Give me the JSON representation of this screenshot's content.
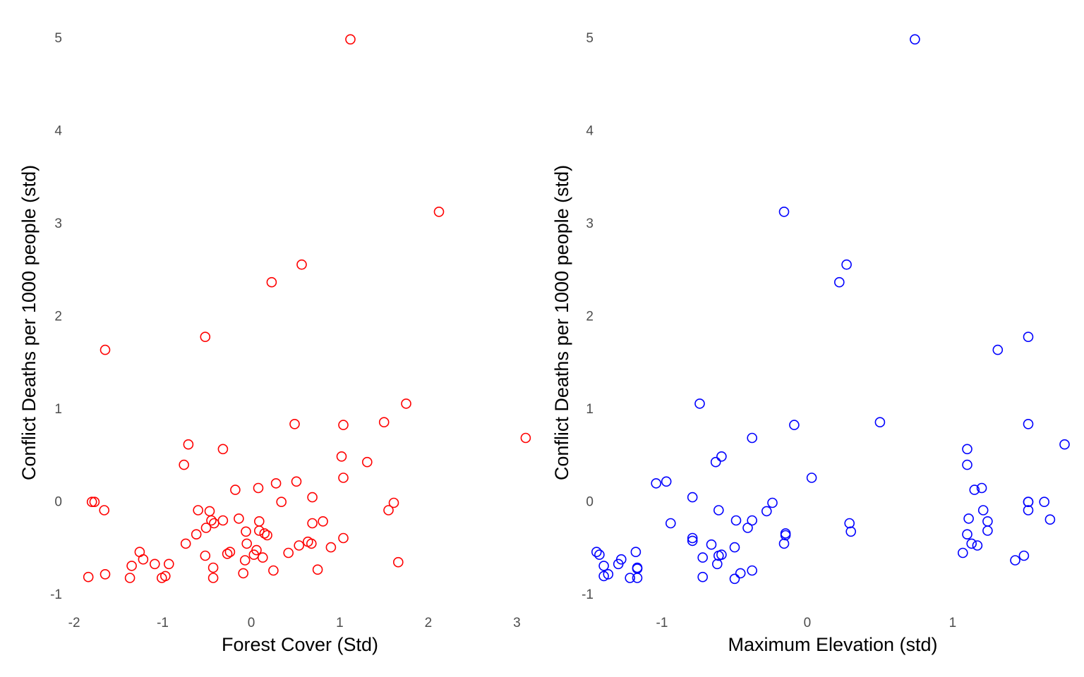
{
  "chart_data": [
    {
      "type": "scatter",
      "title": "",
      "xlabel": "Forest Cover (Std)",
      "ylabel": "Conflict Deaths per 1000 people (std)",
      "xlim": [
        -2.2,
        3.3
      ],
      "ylim": [
        -1.1,
        5.1
      ],
      "x_ticks": [
        -2,
        -1,
        0,
        1,
        2,
        3
      ],
      "x_tick_labels": [
        "-2",
        "-1",
        "0",
        "1",
        "2",
        "3"
      ],
      "y_ticks": [
        -1,
        0,
        1,
        2,
        3,
        4,
        5
      ],
      "y_tick_labels": [
        "-1",
        "0",
        "1",
        "2",
        "3",
        "4",
        "5"
      ],
      "grid": false,
      "marker": "open-circle",
      "color": "#ff0000",
      "series": [
        {
          "x": [
            1.12,
            2.12,
            0.57,
            0.23,
            -0.52,
            -1.65,
            1.75,
            0.49,
            1.04,
            1.5,
            3.1,
            -0.71,
            -0.32,
            1.02,
            -0.76,
            1.31,
            1.04,
            0.28,
            -0.18,
            0.08,
            0.51,
            -1.8,
            -1.77,
            0.34,
            0.69,
            -1.66,
            1.55,
            1.61,
            -0.6,
            -0.47,
            -0.14,
            0.09,
            -0.32,
            -0.45,
            -0.42,
            0.69,
            0.81,
            -0.51,
            -0.06,
            0.09,
            0.15,
            0.18,
            1.04,
            -0.62,
            0.64,
            0.68,
            -0.74,
            0.54,
            0.9,
            -0.05,
            -0.27,
            0.06,
            -0.24,
            0.42,
            -1.26,
            0.03,
            -0.52,
            0.13,
            -0.07,
            -1.22,
            -1.09,
            -0.93,
            1.66,
            -1.35,
            -0.43,
            0.75,
            0.25,
            -0.09,
            -1.65,
            -0.97,
            -1.84,
            -1.37,
            -0.43,
            -1.01
          ],
          "y": [
            4.98,
            3.12,
            2.55,
            2.36,
            1.77,
            1.63,
            1.05,
            0.83,
            0.82,
            0.85,
            0.68,
            0.61,
            0.56,
            0.48,
            0.39,
            0.42,
            0.25,
            0.19,
            0.12,
            0.14,
            0.21,
            -0.01,
            -0.01,
            -0.01,
            0.04,
            -0.1,
            -0.1,
            -0.02,
            -0.1,
            -0.11,
            -0.19,
            -0.22,
            -0.21,
            -0.21,
            -0.24,
            -0.24,
            -0.22,
            -0.29,
            -0.33,
            -0.32,
            -0.35,
            -0.37,
            -0.4,
            -0.36,
            -0.44,
            -0.46,
            -0.46,
            -0.48,
            -0.5,
            -0.46,
            -0.57,
            -0.53,
            -0.55,
            -0.56,
            -0.55,
            -0.58,
            -0.59,
            -0.61,
            -0.64,
            -0.63,
            -0.68,
            -0.68,
            -0.66,
            -0.7,
            -0.72,
            -0.74,
            -0.75,
            -0.78,
            -0.79,
            -0.81,
            -0.82,
            -0.83,
            -0.83,
            -0.83
          ]
        }
      ]
    },
    {
      "type": "scatter",
      "title": "",
      "xlabel": "Maximum Elevation (std)",
      "ylabel": "Conflict Deaths per 1000 people (std)",
      "xlim": [
        -1.5,
        1.85
      ],
      "ylim": [
        -1.1,
        5.1
      ],
      "x_ticks": [
        -1,
        0,
        1
      ],
      "x_tick_labels": [
        "-1",
        "0",
        "1"
      ],
      "y_ticks": [
        -1,
        0,
        1,
        2,
        3,
        4,
        5
      ],
      "y_tick_labels": [
        "-1",
        "0",
        "1",
        "2",
        "3",
        "4",
        "5"
      ],
      "grid": false,
      "marker": "open-circle",
      "color": "#0000ff",
      "series": [
        {
          "x": [
            0.74,
            -0.16,
            0.27,
            0.22,
            1.52,
            1.31,
            -0.74,
            -0.09,
            0.5,
            1.52,
            -0.38,
            1.77,
            1.1,
            -0.59,
            -0.63,
            1.1,
            0.03,
            -0.97,
            -1.04,
            1.2,
            1.15,
            -0.79,
            1.52,
            1.52,
            1.63,
            -0.24,
            1.52,
            -0.61,
            1.21,
            -0.28,
            -0.49,
            -0.38,
            1.11,
            1.24,
            1.67,
            -0.94,
            0.29,
            -0.41,
            -0.15,
            0.3,
            1.24,
            -0.15,
            1.1,
            -0.79,
            -0.16,
            1.13,
            -0.66,
            1.17,
            -0.79,
            -0.5,
            1.07,
            -1.45,
            -1.18,
            -0.59,
            -1.43,
            -0.61,
            -0.72,
            1.49,
            -1.28,
            1.43,
            -1.3,
            -1.4,
            -0.62,
            -1.17,
            -1.17,
            -0.38,
            -0.46,
            -1.37,
            -1.4,
            -0.72,
            -1.22,
            -1.17,
            -0.5
          ],
          "y": [
            4.98,
            3.12,
            2.55,
            2.36,
            1.77,
            1.63,
            1.05,
            0.82,
            0.85,
            0.83,
            0.68,
            0.61,
            0.56,
            0.48,
            0.42,
            0.39,
            0.25,
            0.21,
            0.19,
            0.14,
            0.12,
            0.04,
            -0.01,
            -0.01,
            -0.01,
            -0.02,
            -0.1,
            -0.1,
            -0.1,
            -0.11,
            -0.21,
            -0.21,
            -0.19,
            -0.22,
            -0.2,
            -0.24,
            -0.24,
            -0.29,
            -0.35,
            -0.33,
            -0.32,
            -0.37,
            -0.36,
            -0.4,
            -0.46,
            -0.46,
            -0.47,
            -0.48,
            -0.43,
            -0.5,
            -0.56,
            -0.55,
            -0.55,
            -0.58,
            -0.58,
            -0.59,
            -0.61,
            -0.59,
            -0.63,
            -0.64,
            -0.68,
            -0.7,
            -0.68,
            -0.72,
            -0.73,
            -0.75,
            -0.78,
            -0.79,
            -0.81,
            -0.82,
            -0.83,
            -0.83,
            -0.84
          ]
        }
      ]
    }
  ]
}
